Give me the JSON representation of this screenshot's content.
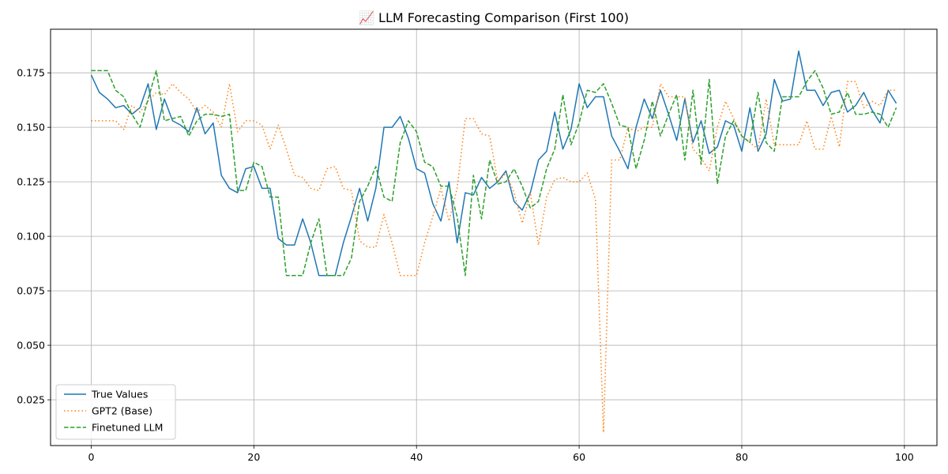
{
  "chart_data": {
    "type": "line",
    "title": "📈 LLM Forecasting Comparison (First 100)",
    "xlabel": "",
    "ylabel": "",
    "xlim": [
      -5,
      104
    ],
    "ylim": [
      0.004,
      0.195
    ],
    "xticks": [
      0,
      20,
      40,
      60,
      80,
      100
    ],
    "yticks": [
      0.025,
      0.05,
      0.075,
      0.1,
      0.125,
      0.15,
      0.175
    ],
    "grid": true,
    "legend_position": "lower-left",
    "x": [
      0,
      1,
      2,
      3,
      4,
      5,
      6,
      7,
      8,
      9,
      10,
      11,
      12,
      13,
      14,
      15,
      16,
      17,
      18,
      19,
      20,
      21,
      22,
      23,
      24,
      25,
      26,
      27,
      28,
      29,
      30,
      31,
      32,
      33,
      34,
      35,
      36,
      37,
      38,
      39,
      40,
      41,
      42,
      43,
      44,
      45,
      46,
      47,
      48,
      49,
      50,
      51,
      52,
      53,
      54,
      55,
      56,
      57,
      58,
      59,
      60,
      61,
      62,
      63,
      64,
      65,
      66,
      67,
      68,
      69,
      70,
      71,
      72,
      73,
      74,
      75,
      76,
      77,
      78,
      79,
      80,
      81,
      82,
      83,
      84,
      85,
      86,
      87,
      88,
      89,
      90,
      91,
      92,
      93,
      94,
      95,
      96,
      97,
      98,
      99
    ],
    "series": [
      {
        "name": "True Values",
        "color": "#1f77b4",
        "dash": "solid",
        "values": [
          0.174,
          0.166,
          0.163,
          0.159,
          0.16,
          0.156,
          0.159,
          0.17,
          0.149,
          0.163,
          0.153,
          0.151,
          0.148,
          0.159,
          0.147,
          0.152,
          0.128,
          0.122,
          0.12,
          0.131,
          0.132,
          0.122,
          0.122,
          0.099,
          0.096,
          0.096,
          0.108,
          0.097,
          0.082,
          0.082,
          0.082,
          0.097,
          0.109,
          0.122,
          0.107,
          0.122,
          0.15,
          0.15,
          0.155,
          0.145,
          0.131,
          0.129,
          0.115,
          0.107,
          0.125,
          0.097,
          0.12,
          0.119,
          0.127,
          0.122,
          0.125,
          0.13,
          0.116,
          0.112,
          0.12,
          0.135,
          0.139,
          0.157,
          0.14,
          0.149,
          0.17,
          0.159,
          0.164,
          0.164,
          0.146,
          0.139,
          0.131,
          0.15,
          0.163,
          0.154,
          0.167,
          0.156,
          0.144,
          0.163,
          0.143,
          0.153,
          0.138,
          0.141,
          0.153,
          0.151,
          0.139,
          0.159,
          0.139,
          0.147,
          0.172,
          0.162,
          0.163,
          0.185,
          0.167,
          0.167,
          0.16,
          0.166,
          0.167,
          0.157,
          0.16,
          0.166,
          0.158,
          0.152,
          0.167,
          0.161
        ]
      },
      {
        "name": "GPT2 (Base)",
        "color": "#ff7f0e",
        "dash": "dotted",
        "values": [
          0.153,
          0.153,
          0.153,
          0.153,
          0.149,
          0.16,
          0.157,
          0.162,
          0.166,
          0.165,
          0.17,
          0.166,
          0.163,
          0.157,
          0.16,
          0.157,
          0.15,
          0.17,
          0.148,
          0.153,
          0.153,
          0.151,
          0.14,
          0.151,
          0.14,
          0.128,
          0.127,
          0.122,
          0.121,
          0.131,
          0.132,
          0.122,
          0.121,
          0.098,
          0.095,
          0.095,
          0.11,
          0.097,
          0.082,
          0.082,
          0.082,
          0.097,
          0.109,
          0.122,
          0.107,
          0.122,
          0.154,
          0.154,
          0.147,
          0.146,
          0.125,
          0.129,
          0.12,
          0.106,
          0.12,
          0.096,
          0.118,
          0.126,
          0.127,
          0.125,
          0.125,
          0.129,
          0.117,
          0.01,
          0.135,
          0.135,
          0.15,
          0.148,
          0.15,
          0.15,
          0.17,
          0.164,
          0.164,
          0.164,
          0.14,
          0.136,
          0.13,
          0.15,
          0.162,
          0.154,
          0.146,
          0.143,
          0.14,
          0.163,
          0.142,
          0.142,
          0.142,
          0.142,
          0.153,
          0.14,
          0.14,
          0.155,
          0.141,
          0.171,
          0.171,
          0.159,
          0.162,
          0.16,
          0.167,
          0.167
        ]
      },
      {
        "name": "Finetuned LLM",
        "color": "#2ca02c",
        "dash": "dashed",
        "values": [
          0.176,
          0.176,
          0.176,
          0.167,
          0.164,
          0.156,
          0.15,
          0.163,
          0.176,
          0.153,
          0.154,
          0.155,
          0.146,
          0.153,
          0.156,
          0.156,
          0.155,
          0.156,
          0.121,
          0.121,
          0.134,
          0.132,
          0.118,
          0.118,
          0.082,
          0.082,
          0.082,
          0.097,
          0.108,
          0.082,
          0.082,
          0.082,
          0.09,
          0.116,
          0.123,
          0.132,
          0.118,
          0.116,
          0.143,
          0.153,
          0.148,
          0.134,
          0.132,
          0.123,
          0.123,
          0.109,
          0.082,
          0.128,
          0.108,
          0.135,
          0.124,
          0.125,
          0.131,
          0.123,
          0.113,
          0.116,
          0.131,
          0.14,
          0.165,
          0.142,
          0.152,
          0.167,
          0.166,
          0.17,
          0.161,
          0.151,
          0.15,
          0.131,
          0.144,
          0.162,
          0.146,
          0.156,
          0.165,
          0.135,
          0.167,
          0.133,
          0.172,
          0.124,
          0.146,
          0.153,
          0.146,
          0.143,
          0.166,
          0.143,
          0.139,
          0.164,
          0.164,
          0.164,
          0.171,
          0.176,
          0.168,
          0.156,
          0.157,
          0.166,
          0.156,
          0.156,
          0.157,
          0.156,
          0.15,
          0.159
        ]
      }
    ]
  }
}
